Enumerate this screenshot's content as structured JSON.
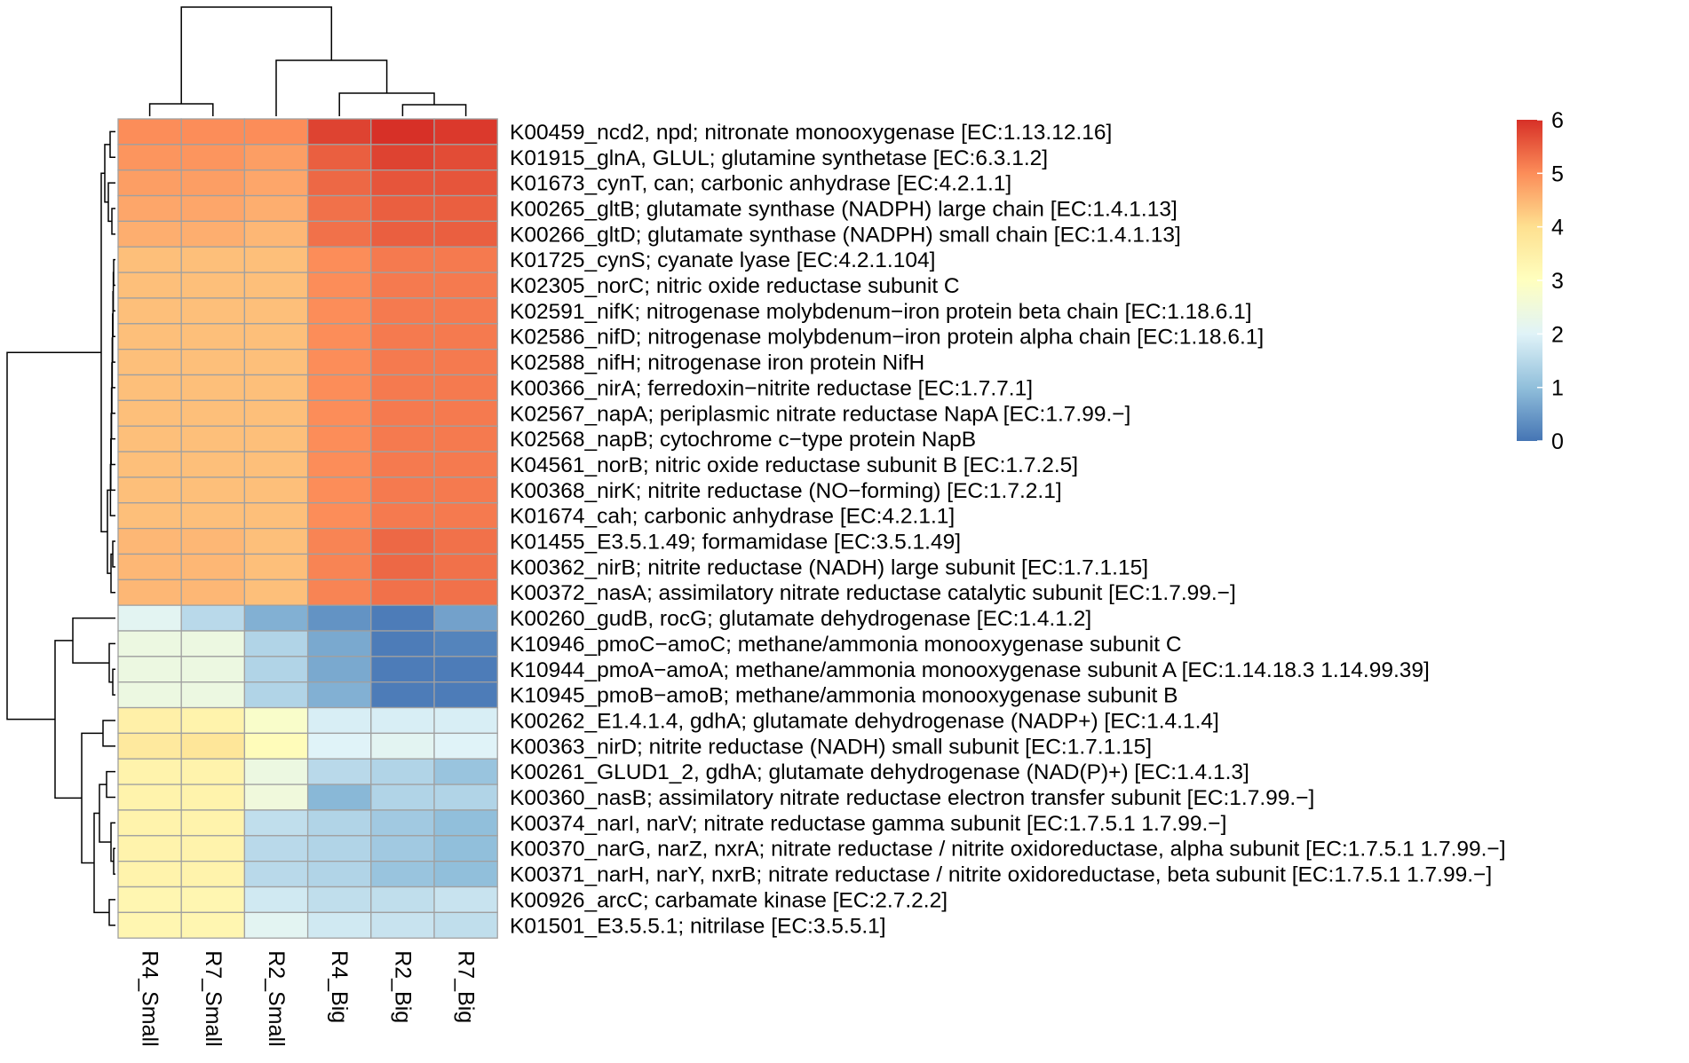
{
  "chart_data": {
    "type": "heatmap",
    "title": "",
    "columns": [
      "R4_Small",
      "R7_Small",
      "R2_Small",
      "R4_Big",
      "R2_Big",
      "R7_Big"
    ],
    "rows": [
      "K00459_ncd2, npd; nitronate monooxygenase [EC:1.13.12.16]",
      "K01915_glnA, GLUL; glutamine synthetase [EC:6.3.1.2]",
      "K01673_cynT, can; carbonic anhydrase [EC:4.2.1.1]",
      "K00265_gltB; glutamate synthase (NADPH) large chain [EC:1.4.1.13]",
      "K00266_gltD; glutamate synthase (NADPH) small chain [EC:1.4.1.13]",
      "K01725_cynS; cyanate lyase [EC:4.2.1.104]",
      "K02305_norC; nitric oxide reductase subunit C",
      "K02591_nifK; nitrogenase molybdenum−iron protein beta chain [EC:1.18.6.1]",
      "K02586_nifD; nitrogenase molybdenum−iron protein alpha chain [EC:1.18.6.1]",
      "K02588_nifH; nitrogenase iron protein NifH",
      "K00366_nirA; ferredoxin−nitrite reductase [EC:1.7.7.1]",
      "K02567_napA; periplasmic nitrate reductase NapA [EC:1.7.99.−]",
      "K02568_napB; cytochrome c−type protein NapB",
      "K04561_norB; nitric oxide reductase subunit B [EC:1.7.2.5]",
      "K00368_nirK; nitrite reductase (NO−forming) [EC:1.7.2.1]",
      "K01674_cah; carbonic anhydrase [EC:4.2.1.1]",
      "K01455_E3.5.1.49; formamidase [EC:3.5.1.49]",
      "K00362_nirB; nitrite reductase (NADH) large subunit [EC:1.7.1.15]",
      "K00372_nasA; assimilatory nitrate reductase catalytic subunit [EC:1.7.99.−]",
      "K00260_gudB, rocG; glutamate dehydrogenase [EC:1.4.1.2]",
      "K10946_pmoC−amoC; methane/ammonia monooxygenase subunit C",
      "K10944_pmoA−amoA; methane/ammonia monooxygenase subunit A [EC:1.14.18.3 1.14.99.39]",
      "K10945_pmoB−amoB; methane/ammonia monooxygenase subunit B",
      "K00262_E1.4.1.4, gdhA; glutamate dehydrogenase (NADP+) [EC:1.4.1.4]",
      "K00363_nirD; nitrite reductase (NADH) small subunit [EC:1.7.1.15]",
      "K00261_GLUD1_2, gdhA; glutamate dehydrogenase (NAD(P)+) [EC:1.4.1.3]",
      "K00360_nasB; assimilatory nitrate reductase electron transfer subunit [EC:1.7.99.−]",
      "K00374_narI, narV; nitrate reductase gamma subunit [EC:1.7.5.1 1.7.99.−]",
      "K00370_narG, narZ, nxrA; nitrate reductase / nitrite oxidoreductase, alpha subunit [EC:1.7.5.1 1.7.99.−]",
      "K00371_narH, narY, nxrB; nitrate reductase / nitrite oxidoreductase, beta subunit [EC:1.7.5.1 1.7.99.−]",
      "K00926_arcC; carbamate kinase [EC:2.7.2.2]",
      "K01501_E3.5.5.1; nitrilase [EC:3.5.5.1]"
    ],
    "values": [
      [
        5.0,
        5.0,
        5.0,
        5.8,
        6.0,
        5.9
      ],
      [
        4.9,
        4.9,
        4.8,
        5.5,
        5.8,
        5.7
      ],
      [
        4.8,
        4.8,
        4.7,
        5.4,
        5.6,
        5.6
      ],
      [
        4.7,
        4.7,
        4.6,
        5.3,
        5.5,
        5.5
      ],
      [
        4.6,
        4.6,
        4.5,
        5.3,
        5.5,
        5.5
      ],
      [
        4.4,
        4.4,
        4.4,
        5.0,
        5.2,
        5.2
      ],
      [
        4.4,
        4.4,
        4.4,
        5.0,
        5.2,
        5.2
      ],
      [
        4.4,
        4.4,
        4.4,
        5.0,
        5.2,
        5.2
      ],
      [
        4.4,
        4.4,
        4.4,
        5.0,
        5.2,
        5.2
      ],
      [
        4.4,
        4.4,
        4.4,
        5.0,
        5.2,
        5.2
      ],
      [
        4.4,
        4.4,
        4.4,
        5.0,
        5.2,
        5.2
      ],
      [
        4.4,
        4.4,
        4.4,
        5.0,
        5.2,
        5.2
      ],
      [
        4.4,
        4.4,
        4.4,
        5.0,
        5.2,
        5.2
      ],
      [
        4.4,
        4.4,
        4.4,
        5.0,
        5.2,
        5.2
      ],
      [
        4.4,
        4.4,
        4.4,
        5.0,
        5.2,
        5.2
      ],
      [
        4.4,
        4.4,
        4.4,
        5.0,
        5.2,
        5.2
      ],
      [
        4.5,
        4.5,
        4.4,
        5.1,
        5.4,
        5.3
      ],
      [
        4.5,
        4.5,
        4.4,
        5.1,
        5.4,
        5.3
      ],
      [
        4.5,
        4.5,
        4.4,
        5.1,
        5.3,
        5.3
      ],
      [
        2.1,
        1.5,
        0.8,
        0.4,
        0.1,
        0.6
      ],
      [
        2.4,
        2.4,
        1.4,
        0.7,
        0.1,
        0.2
      ],
      [
        2.4,
        2.4,
        1.4,
        0.7,
        0.1,
        0.1
      ],
      [
        2.4,
        2.4,
        1.4,
        0.8,
        0.1,
        0.1
      ],
      [
        3.5,
        3.4,
        2.8,
        1.9,
        1.9,
        1.9
      ],
      [
        3.7,
        3.8,
        3.1,
        2.0,
        2.1,
        2.0
      ],
      [
        3.4,
        3.4,
        2.4,
        1.5,
        1.4,
        1.1
      ],
      [
        3.4,
        3.4,
        2.5,
        0.9,
        1.4,
        1.4
      ],
      [
        3.4,
        3.4,
        1.6,
        1.4,
        1.2,
        1.0
      ],
      [
        3.4,
        3.4,
        1.5,
        1.4,
        1.2,
        1.0
      ],
      [
        3.4,
        3.4,
        1.5,
        1.4,
        1.1,
        1.0
      ],
      [
        3.3,
        3.3,
        1.8,
        1.6,
        1.6,
        1.7
      ],
      [
        3.3,
        3.3,
        2.1,
        1.8,
        1.7,
        1.6
      ]
    ],
    "scale": {
      "min": 0,
      "max": 6,
      "ticks": [
        "0",
        "1",
        "2",
        "3",
        "4",
        "5",
        "6"
      ],
      "colors": [
        "#4575b4",
        "#91bfdb",
        "#e0f3f8",
        "#ffffbf",
        "#fee090",
        "#fc8d59",
        "#d73027"
      ]
    },
    "legend_position": "top-right",
    "row_dendrogram": true,
    "column_dendrogram": true
  }
}
